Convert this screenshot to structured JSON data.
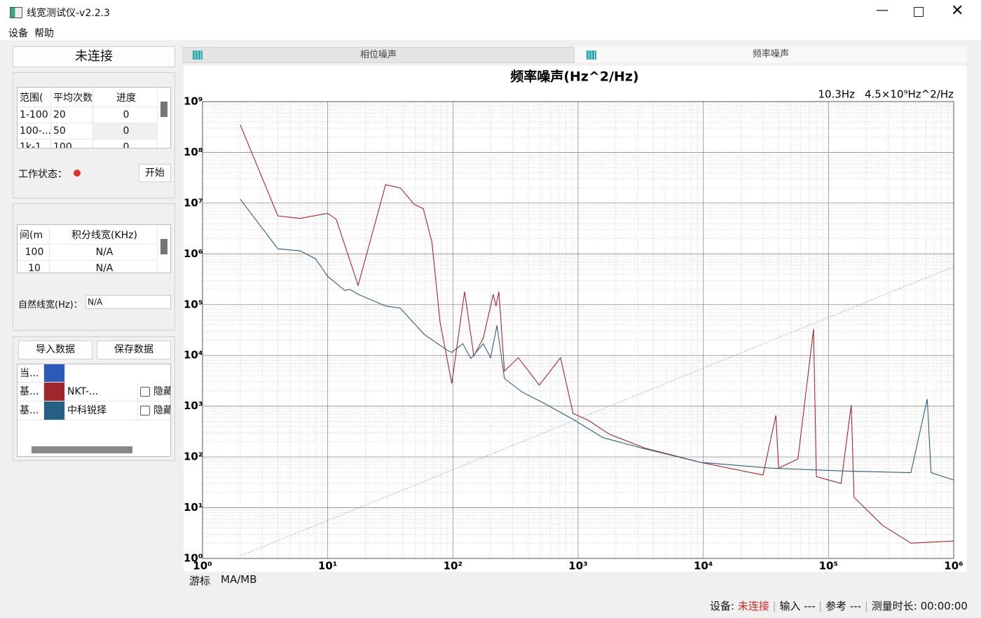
{
  "window": {
    "title": "线宽测试仪-v2.2.3"
  },
  "menu": [
    "设备",
    "帮助"
  ],
  "left_panel": {
    "connect_button": "未连接",
    "averaging_table": {
      "headers": [
        "范围(",
        "平均次数",
        "进度"
      ],
      "rows": [
        [
          "1-100",
          "20",
          "0"
        ],
        [
          "100-...",
          "50",
          "0"
        ],
        [
          "1k-1...",
          "100",
          "0"
        ]
      ]
    },
    "work_status_label": "工作状态：",
    "start_button": "开始",
    "linewidth_table": {
      "headers": [
        "间(m",
        "积分线宽(KHz)"
      ],
      "rows": [
        [
          "100",
          "N/A"
        ],
        [
          "10",
          "N/A"
        ]
      ]
    },
    "natural_linewidth_label": "自然线宽(Hz)：",
    "natural_linewidth_value": "N/A",
    "import_button": "导入数据",
    "save_button": "保存数据",
    "data_table": {
      "rows": [
        {
          "label": "当...",
          "color": "#2a5bb8"
        },
        {
          "label": "基...",
          "color": "#a1262c",
          "hide": "隐藏"
        },
        {
          "label": "基...",
          "color": "#245f85",
          "hide": "隐藏"
        }
      ]
    }
  },
  "tabs": [
    "相位噪声",
    "频率噪声"
  ],
  "chart_data": {
    "type": "line",
    "title": "频率噪声(Hz^2/Hz)",
    "annotation": [
      "10.3Hz",
      "4.5×10⁹Hz^2/Hz"
    ],
    "cursor_label": "游标",
    "cursor_value": "MA/MB",
    "log_x": true,
    "log_y": true,
    "grid": true,
    "xlim": [
      1,
      1000000
    ],
    "ylim": [
      1,
      1000000000
    ],
    "xticks": [
      {
        "value": 1,
        "label": "10⁰"
      },
      {
        "value": 10,
        "label": "10¹"
      },
      {
        "value": 100,
        "label": "10²"
      },
      {
        "value": 1000,
        "label": "10³"
      },
      {
        "value": 10000,
        "label": "10⁴"
      },
      {
        "value": 100000,
        "label": "10⁵"
      },
      {
        "value": 1000000,
        "label": "10⁶"
      }
    ],
    "yticks": [
      {
        "value": 1,
        "label": "10⁰"
      },
      {
        "value": 10,
        "label": "10¹"
      },
      {
        "value": 100,
        "label": "10²"
      },
      {
        "value": 1000,
        "label": "10³"
      },
      {
        "value": 10000,
        "label": "10⁴"
      },
      {
        "value": 100000,
        "label": "10⁵"
      },
      {
        "value": 1000000,
        "label": "10⁶"
      },
      {
        "value": 10000000,
        "label": "10⁷"
      },
      {
        "value": 100000000,
        "label": "10⁸"
      },
      {
        "value": 1000000000,
        "label": "10⁹"
      }
    ],
    "series": [
      {
        "name": "NKT-...",
        "color": "#a8262e",
        "x": [
          2,
          4,
          6,
          10,
          11.7,
          17.5,
          29,
          38,
          49,
          58,
          68,
          79,
          98,
          124,
          147,
          175,
          210,
          221,
          233,
          258,
          333,
          490,
          724,
          912,
          1200,
          1780,
          3400,
          9550,
          30000,
          38000,
          40000,
          57000,
          76000,
          80000,
          126000,
          152000,
          160000,
          270000,
          455000,
          1000000
        ],
        "values": [
          350000000,
          5600000,
          5000000,
          6300000,
          4800000,
          240000,
          23000000,
          20000000,
          9500000,
          7800000,
          1700000,
          45000,
          2800,
          180000,
          9800,
          22000,
          160000,
          94000,
          180000,
          4900,
          9000,
          2600,
          9000,
          720,
          530,
          280,
          150,
          78,
          44,
          660,
          60,
          91,
          33000,
          41,
          30,
          1050,
          16,
          4.5,
          2,
          2.2
        ]
      },
      {
        "name": "中科锐择",
        "color": "#2a5f82",
        "x": [
          2,
          4,
          6,
          8,
          10,
          13.7,
          15,
          17.5,
          29,
          38,
          59,
          90,
          98,
          120,
          139,
          175,
          200,
          225,
          258,
          357,
          525,
          935,
          1580,
          3200,
          9550,
          35000,
          126000,
          455000,
          615000,
          660000,
          1000000
        ],
        "values": [
          12000000,
          1260000,
          1150000,
          800000,
          360000,
          190000,
          200000,
          160000,
          94000,
          85000,
          26000,
          12600,
          11500,
          17000,
          8700,
          17000,
          9000,
          39000,
          3500,
          1900,
          1170,
          530,
          240,
          150,
          78,
          60,
          53,
          49,
          1380,
          49,
          35
        ]
      },
      {
        "color": "#9a9a9a",
        "dash": true,
        "x": [
          2,
          1000000
        ],
        "values": [
          1.12,
          560000
        ]
      }
    ]
  },
  "status_bar": {
    "device_label": "设备:",
    "device_state": "未连接",
    "input": "输入 ---",
    "reference": "参考 ---",
    "duration": "测量时长: 00:00:00"
  }
}
